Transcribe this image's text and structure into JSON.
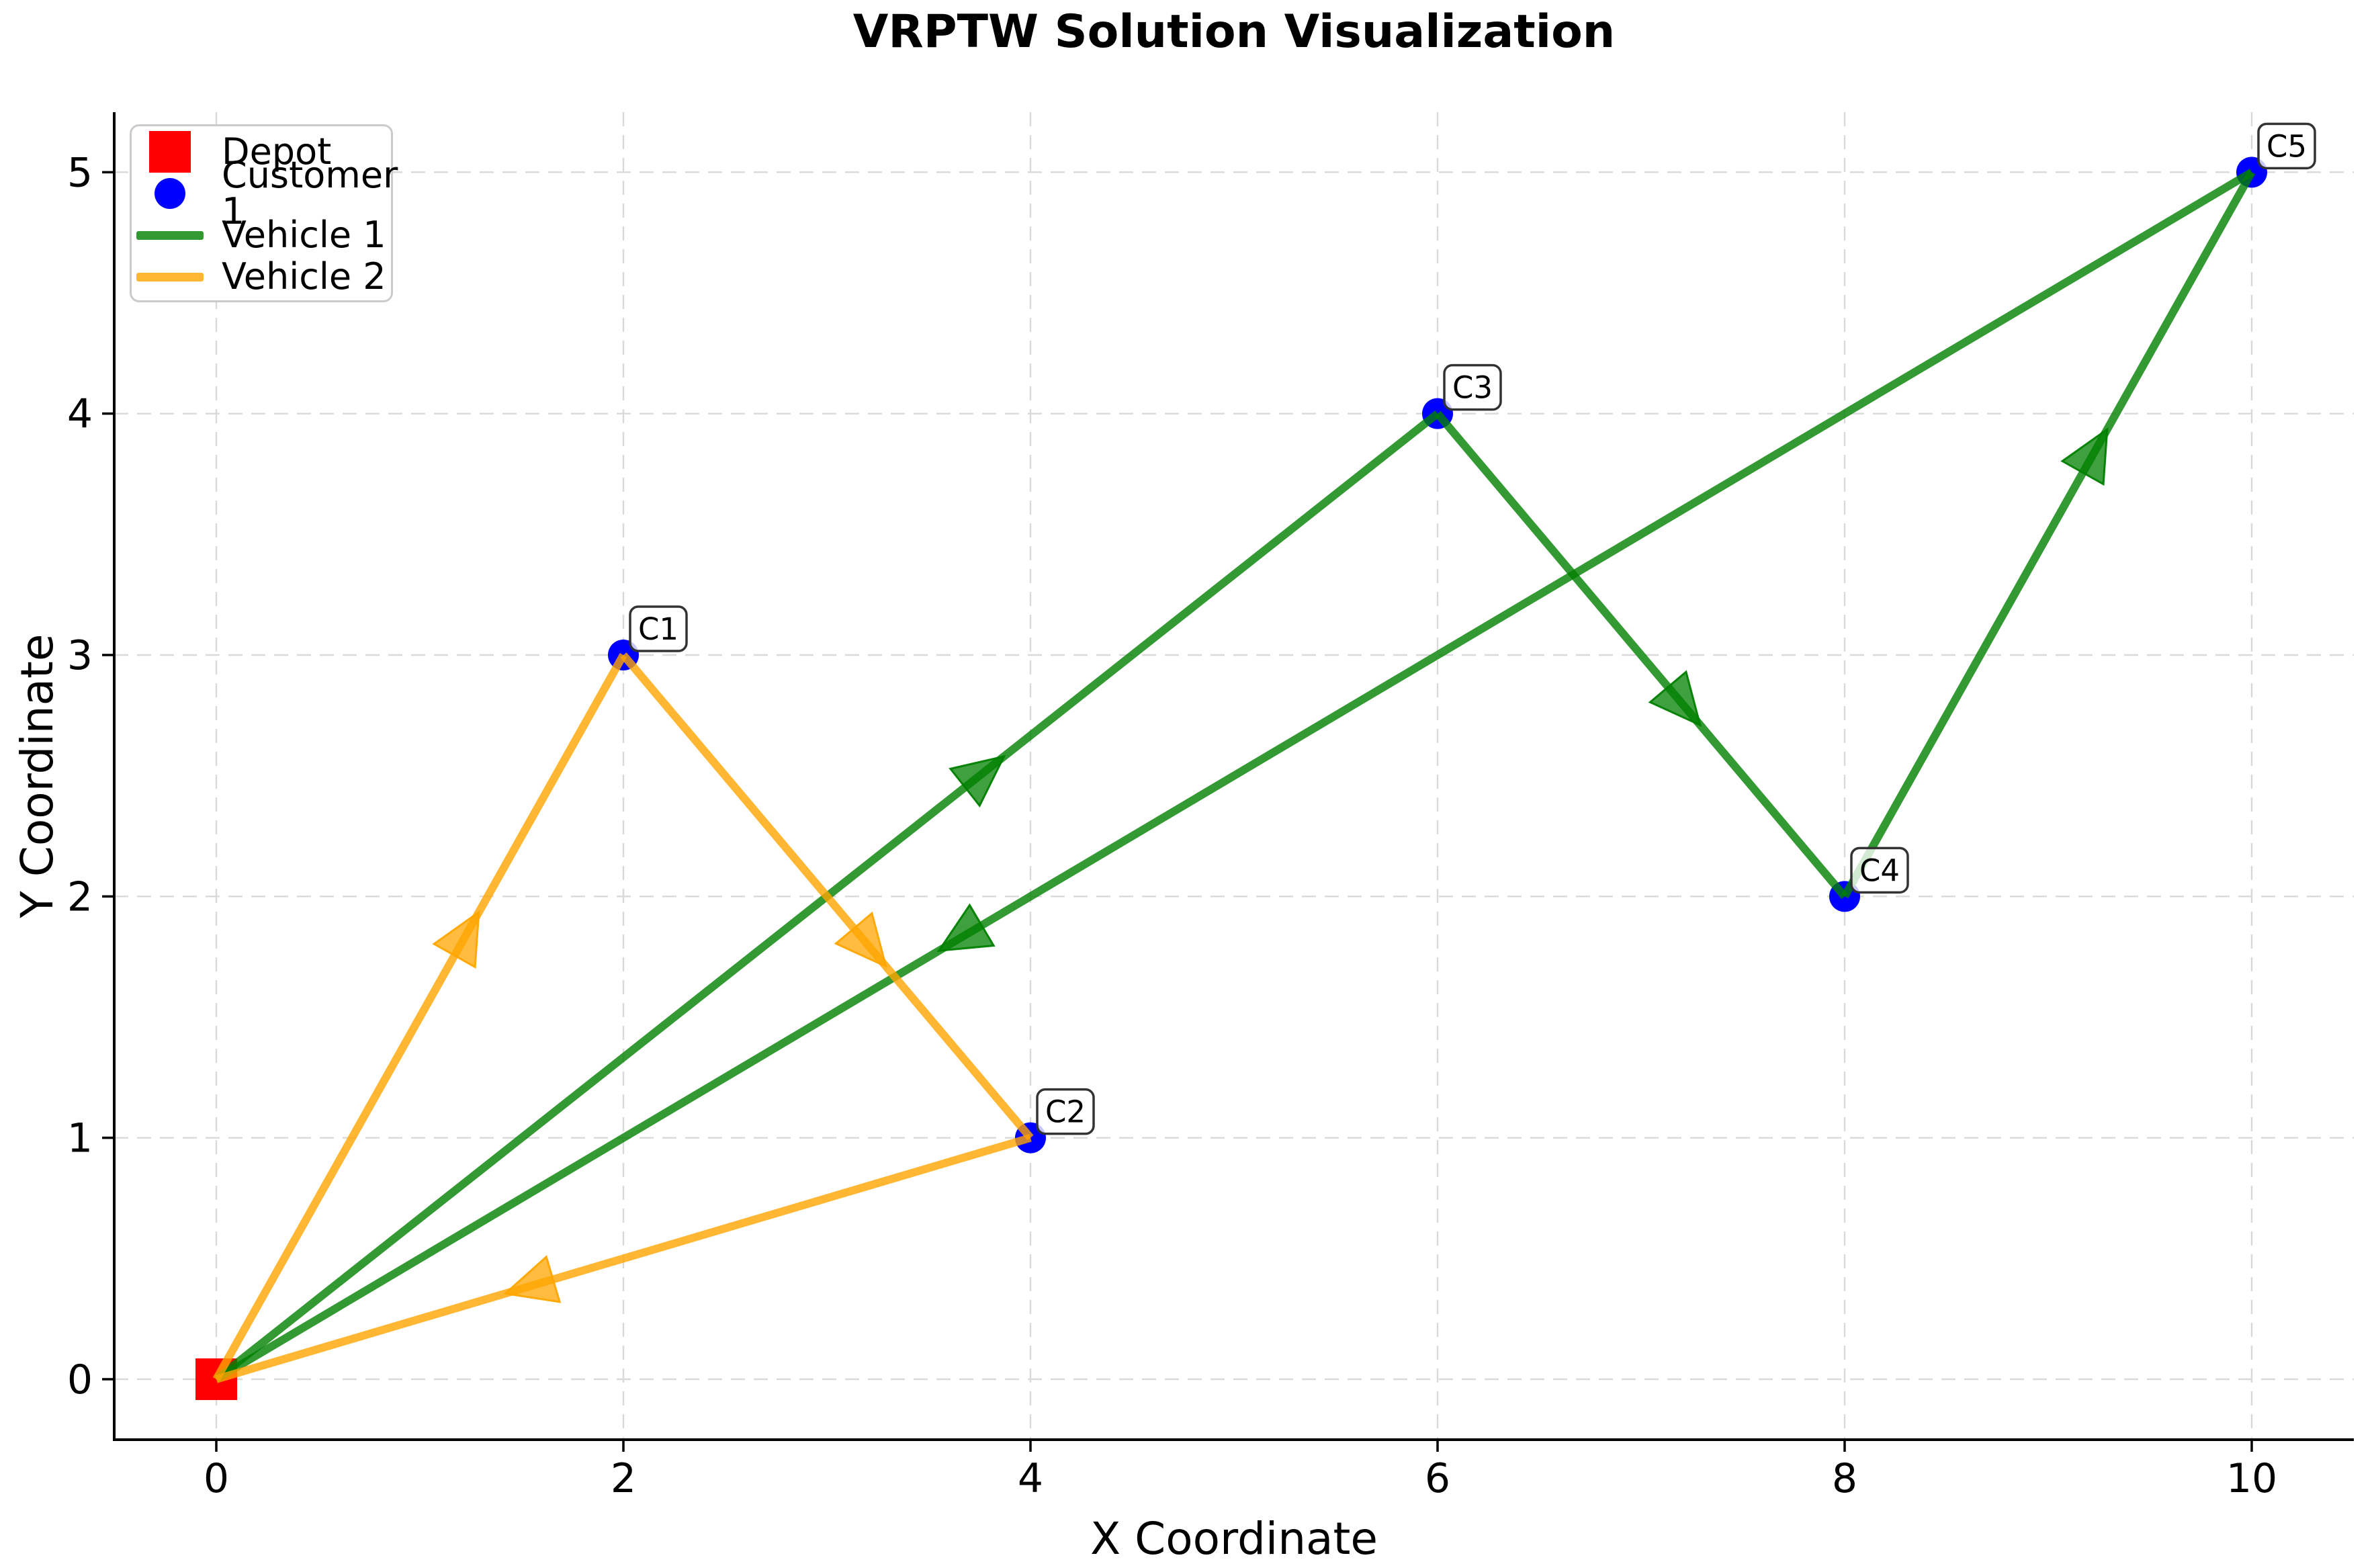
{
  "chart_data": {
    "type": "scatter",
    "title": "VRPTW Solution Visualization",
    "xlabel": "X Coordinate",
    "ylabel": "Y Coordinate",
    "xlim": [
      -0.5,
      10.5
    ],
    "ylim": [
      -0.25,
      5.25
    ],
    "x_ticks": [
      0,
      2,
      4,
      6,
      8,
      10
    ],
    "y_ticks": [
      0,
      1,
      2,
      3,
      4,
      5
    ],
    "grid": true,
    "legend_position": "upper left",
    "depot": {
      "label": "Depot",
      "x": 0,
      "y": 0,
      "marker": "square",
      "color": "#ff0000"
    },
    "customers": [
      {
        "id": "C1",
        "x": 2,
        "y": 3
      },
      {
        "id": "C2",
        "x": 4,
        "y": 1
      },
      {
        "id": "C3",
        "x": 6,
        "y": 4
      },
      {
        "id": "C4",
        "x": 8,
        "y": 2
      },
      {
        "id": "C5",
        "x": 10,
        "y": 5
      }
    ],
    "customer_marker": {
      "color": "#0000ff",
      "shape": "circle"
    },
    "customer_label_box": {
      "fill": "#ffffff",
      "opacity": 0.78,
      "border": "#333333"
    },
    "routes": [
      {
        "name": "Vehicle 1",
        "color": "#008000",
        "opacity": 0.8,
        "sequence": [
          "Depot",
          "C3",
          "C4",
          "C5",
          "Depot"
        ],
        "points": [
          [
            0,
            0
          ],
          [
            6,
            4
          ],
          [
            8,
            2
          ],
          [
            10,
            5
          ],
          [
            0,
            0
          ]
        ]
      },
      {
        "name": "Vehicle 2",
        "color": "#ffa500",
        "opacity": 0.8,
        "sequence": [
          "Depot",
          "C1",
          "C2",
          "Depot"
        ],
        "points": [
          [
            0,
            0
          ],
          [
            2,
            3
          ],
          [
            4,
            1
          ],
          [
            0,
            0
          ]
        ]
      }
    ],
    "grid_color": "#d9d9d9",
    "spine_color": "#000000"
  },
  "legend": {
    "items": [
      {
        "label": "Depot",
        "swatch": "square",
        "color": "#ff0000"
      },
      {
        "label": "Customer 1",
        "swatch": "circle",
        "color": "#0000ff"
      },
      {
        "label": "Vehicle 1",
        "swatch": "line",
        "color": "#339933"
      },
      {
        "label": "Vehicle 2",
        "swatch": "line",
        "color": "#ffb733"
      }
    ]
  }
}
